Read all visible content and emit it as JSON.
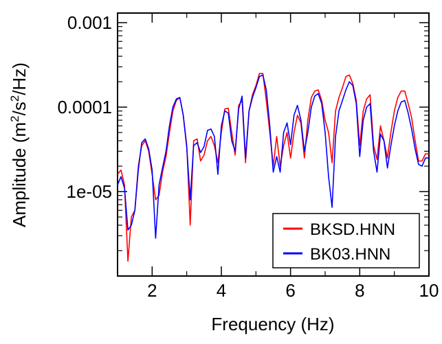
{
  "chart_data": {
    "type": "line",
    "title": "",
    "xlabel": "Frequency (Hz)",
    "ylabel_parts": {
      "base": "Amplitude (m",
      "sup1": "2",
      "mid": "/s",
      "sup2": "2",
      "tail": "/Hz)"
    },
    "xlim": [
      1,
      10
    ],
    "ylim": [
      1e-06,
      0.0013
    ],
    "y_scale": "log",
    "x_ticks": [
      2,
      4,
      6,
      8,
      10
    ],
    "x_tick_labels": [
      "2",
      "4",
      "6",
      "8",
      "10"
    ],
    "y_ticks": [
      1e-05,
      0.0001,
      0.001
    ],
    "y_tick_labels": [
      "1e-05",
      "0.0001",
      "0.001"
    ],
    "grid": false,
    "legend_position": "bottom-right",
    "x": [
      1.0,
      1.1,
      1.2,
      1.3,
      1.4,
      1.5,
      1.6,
      1.7,
      1.8,
      1.9,
      2.0,
      2.1,
      2.2,
      2.3,
      2.4,
      2.5,
      2.6,
      2.7,
      2.8,
      2.9,
      3.0,
      3.1,
      3.2,
      3.3,
      3.4,
      3.5,
      3.6,
      3.7,
      3.8,
      3.9,
      4.0,
      4.1,
      4.2,
      4.3,
      4.4,
      4.5,
      4.6,
      4.7,
      4.8,
      4.9,
      5.0,
      5.1,
      5.2,
      5.3,
      5.4,
      5.5,
      5.6,
      5.7,
      5.8,
      5.9,
      6.0,
      6.1,
      6.2,
      6.3,
      6.4,
      6.5,
      6.6,
      6.7,
      6.8,
      6.9,
      7.0,
      7.1,
      7.2,
      7.3,
      7.4,
      7.5,
      7.6,
      7.7,
      7.8,
      7.9,
      8.0,
      8.1,
      8.2,
      8.3,
      8.4,
      8.5,
      8.6,
      8.7,
      8.8,
      8.9,
      9.0,
      9.1,
      9.2,
      9.3,
      9.4,
      9.5,
      9.6,
      9.7,
      9.8,
      9.9,
      10.0
    ],
    "series": [
      {
        "name": "BKSD.HNN",
        "color": "#ff0000",
        "values": [
          1.6e-05,
          1.8e-05,
          1.2e-05,
          1.5e-06,
          5e-06,
          6e-06,
          2e-05,
          3.5e-05,
          4e-05,
          3e-05,
          1.6e-05,
          8e-06,
          9e-06,
          1.7e-05,
          2.6e-05,
          5e-05,
          9e-05,
          0.00012,
          0.00013,
          8e-05,
          3.5e-05,
          4e-06,
          4e-05,
          4.2e-05,
          2.3e-05,
          2.7e-05,
          4e-05,
          4.5e-05,
          3.5e-05,
          2.2e-05,
          5e-05,
          9.5e-05,
          9.7e-05,
          5e-05,
          2.7e-05,
          0.000105,
          0.00012,
          2.2e-05,
          9e-05,
          0.00014,
          0.00018,
          0.00025,
          0.00025,
          0.00012,
          5e-05,
          2e-05,
          4.5e-05,
          2e-05,
          3.5e-05,
          5e-05,
          2.5e-05,
          5e-05,
          8e-05,
          6.5e-05,
          2.5e-05,
          7e-05,
          0.00013,
          0.000155,
          0.00016,
          0.00012,
          7e-05,
          5e-05,
          2.2e-05,
          9e-05,
          0.00013,
          0.00017,
          0.00023,
          0.00024,
          0.00019,
          0.00012,
          3.5e-05,
          9e-05,
          0.000125,
          0.00014,
          3.5e-05,
          2.4e-05,
          6e-05,
          4e-05,
          2.5e-05,
          5e-05,
          9e-05,
          0.00013,
          0.000155,
          0.000155,
          0.00011,
          7.5e-05,
          4e-05,
          2.3e-05,
          2.3e-05,
          2.8e-05,
          2.8e-05
        ]
      },
      {
        "name": "BK03.HNN",
        "color": "#0000ff",
        "values": [
          1.2e-05,
          1.5e-05,
          1.1e-05,
          3.5e-06,
          4e-06,
          6e-06,
          1.8e-05,
          3.8e-05,
          4.2e-05,
          3.2e-05,
          1.8e-05,
          2.8e-06,
          1.2e-05,
          1.9e-05,
          3e-05,
          6e-05,
          0.0001,
          0.000125,
          0.00013,
          8e-05,
          3.3e-05,
          8e-06,
          3.5e-05,
          3.8e-05,
          2.9e-05,
          3.4e-05,
          5.3e-05,
          5.5e-05,
          4.5e-05,
          1.6e-05,
          6e-05,
          9e-05,
          8.5e-05,
          4e-05,
          3e-05,
          9.5e-05,
          0.000135,
          2.5e-05,
          9e-05,
          0.00013,
          0.00017,
          0.00023,
          0.00024,
          0.00016,
          6e-05,
          1.7e-05,
          2.6e-05,
          1.7e-05,
          5e-05,
          6.5e-05,
          3.6e-05,
          8e-05,
          0.000105,
          7e-05,
          3e-05,
          5e-05,
          0.0001,
          0.000135,
          0.000145,
          0.00011,
          5e-05,
          1.5e-05,
          6.5e-06,
          4.5e-05,
          9e-05,
          0.00012,
          0.00016,
          0.0002,
          0.00018,
          0.00011,
          2.6e-05,
          7e-05,
          0.0001,
          0.00011,
          3e-05,
          1.7e-05,
          4.8e-05,
          4e-05,
          1.9e-05,
          3.5e-05,
          6e-05,
          9e-05,
          0.000115,
          0.00012,
          8.5e-05,
          5.5e-05,
          3.2e-05,
          2.1e-05,
          2e-05,
          2.5e-05,
          2.5e-05
        ]
      }
    ]
  }
}
